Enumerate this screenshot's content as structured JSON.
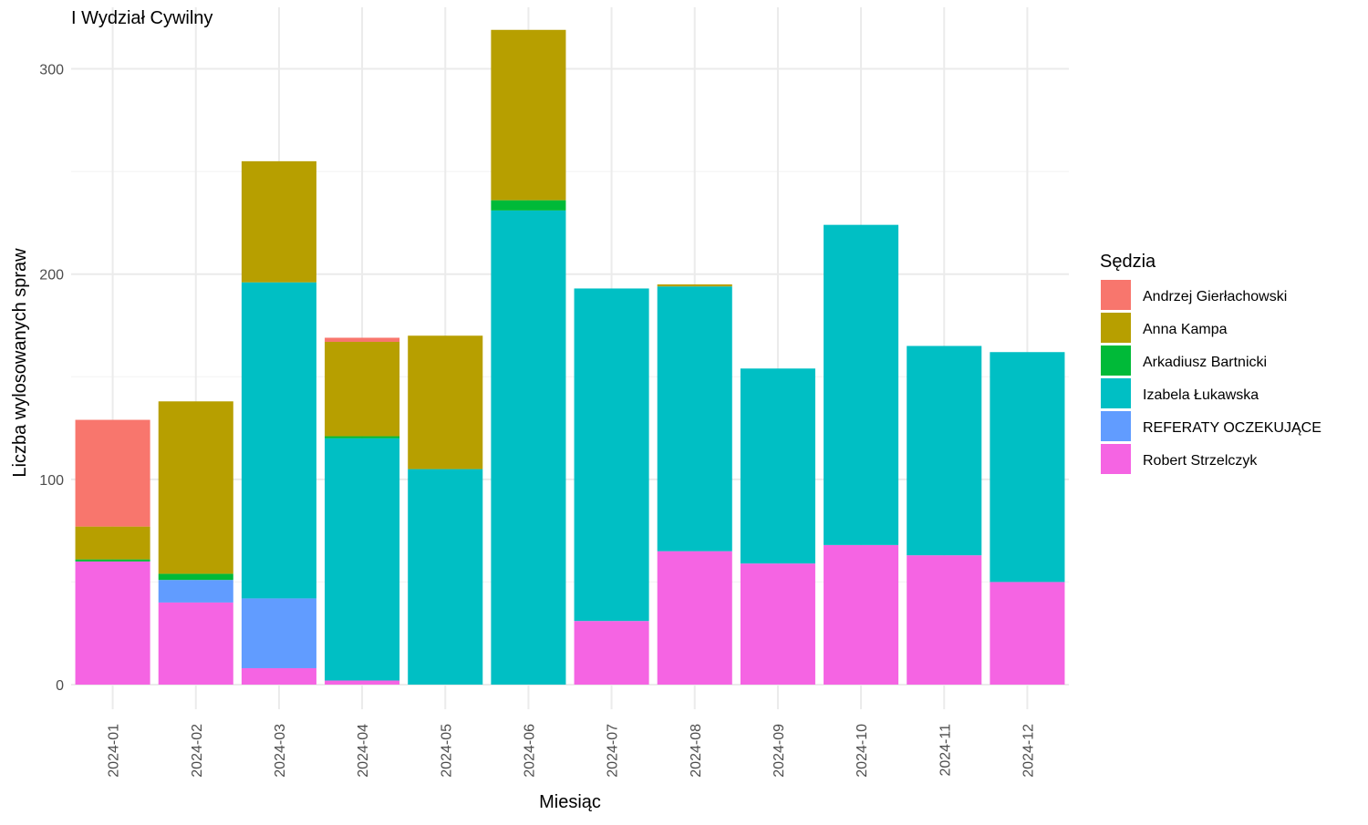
{
  "chart_data": {
    "type": "bar",
    "stacked": true,
    "title": "I Wydział Cywilny",
    "xlabel": "Miesiąc",
    "ylabel": "Liczba wylosowanych spraw",
    "ylim": [
      -12,
      330
    ],
    "yticks": [
      0,
      100,
      200,
      300
    ],
    "grid": true,
    "legend_title": "Sędzia",
    "legend_position": "right",
    "categories": [
      "2024-01",
      "2024-02",
      "2024-03",
      "2024-04",
      "2024-05",
      "2024-06",
      "2024-07",
      "2024-08",
      "2024-09",
      "2024-10",
      "2024-11",
      "2024-12"
    ],
    "series": [
      {
        "name": "Robert Strzelczyk",
        "color": "#F564E3",
        "values": [
          60,
          40,
          8,
          2,
          0,
          0,
          31,
          65,
          59,
          68,
          63,
          50
        ]
      },
      {
        "name": "REFERATY OCZEKUJĄCE",
        "color": "#619CFF",
        "values": [
          0,
          11,
          34,
          0,
          0,
          0,
          0,
          0,
          0,
          0,
          0,
          0
        ]
      },
      {
        "name": "Izabela Łukawska",
        "color": "#00BFC4",
        "values": [
          0,
          0,
          154,
          118,
          105,
          231,
          162,
          129,
          95,
          156,
          102,
          112
        ]
      },
      {
        "name": "Arkadiusz Bartnicki",
        "color": "#00BA38",
        "values": [
          1,
          3,
          0,
          1,
          0,
          5,
          0,
          0,
          0,
          0,
          0,
          0
        ]
      },
      {
        "name": "Anna Kampa",
        "color": "#B79F00",
        "values": [
          16,
          84,
          59,
          46,
          65,
          83,
          0,
          1,
          0,
          0,
          0,
          0
        ]
      },
      {
        "name": "Andrzej Gierłachowski",
        "color": "#F8766D",
        "values": [
          52,
          0,
          0,
          2,
          0,
          0,
          0,
          0,
          0,
          0,
          0,
          0
        ]
      }
    ],
    "legend_order": [
      "Andrzej Gierłachowski",
      "Anna Kampa",
      "Arkadiusz Bartnicki",
      "Izabela Łukawska",
      "REFERATY OCZEKUJĄCE",
      "Robert Strzelczyk"
    ]
  }
}
